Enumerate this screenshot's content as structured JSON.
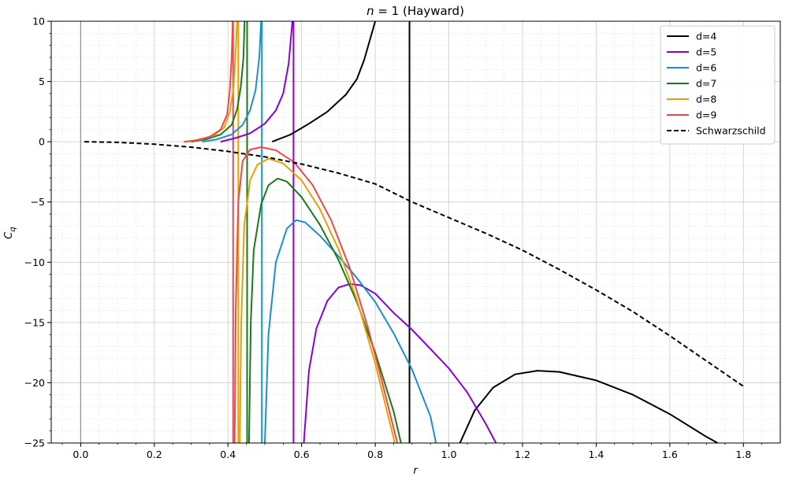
{
  "chart_data": {
    "type": "line",
    "title_var": "n",
    "title_rest": " = 1 (Hayward)",
    "xlabel": "r",
    "ylabel_main": "C",
    "ylabel_sub": "q",
    "xlim": [
      -0.08,
      1.9
    ],
    "ylim": [
      -25,
      10
    ],
    "xticks": [
      0.0,
      0.2,
      0.4,
      0.6,
      0.8,
      1.0,
      1.2,
      1.4,
      1.6,
      1.8
    ],
    "xtick_labels": [
      "0.0",
      "0.2",
      "0.4",
      "0.6",
      "0.8",
      "1.0",
      "1.2",
      "1.4",
      "1.6",
      "1.8"
    ],
    "yticks": [
      10,
      5,
      0,
      -5,
      -10,
      -15,
      -20,
      -25
    ],
    "ytick_labels": [
      "10",
      "5",
      "0",
      "−5",
      "−10",
      "−15",
      "−20",
      "−25"
    ],
    "grid": true,
    "legend_position": "top-right",
    "series": [
      {
        "name": "d=4",
        "color": "#000000",
        "dash": false,
        "points": [
          [
            0.52,
            0.0
          ],
          [
            0.57,
            0.6
          ],
          [
            0.62,
            1.5
          ],
          [
            0.67,
            2.5
          ],
          [
            0.72,
            3.9
          ],
          [
            0.75,
            5.2
          ],
          [
            0.77,
            6.8
          ],
          [
            0.785,
            8.4
          ],
          [
            0.8,
            10
          ]
        ],
        "points2": [
          [
            1.03,
            -25
          ],
          [
            1.07,
            -22.3
          ],
          [
            1.12,
            -20.4
          ],
          [
            1.18,
            -19.3
          ],
          [
            1.24,
            -19.0
          ],
          [
            1.3,
            -19.1
          ],
          [
            1.4,
            -19.8
          ],
          [
            1.5,
            -21.0
          ],
          [
            1.6,
            -22.6
          ],
          [
            1.7,
            -24.5
          ],
          [
            1.73,
            -25
          ]
        ],
        "vline": 0.893
      },
      {
        "name": "d=5",
        "color": "#8B00D6",
        "dash": false,
        "points": [
          [
            0.38,
            0.0
          ],
          [
            0.42,
            0.3
          ],
          [
            0.46,
            0.7
          ],
          [
            0.5,
            1.5
          ],
          [
            0.53,
            2.6
          ],
          [
            0.55,
            4.0
          ],
          [
            0.565,
            6.5
          ],
          [
            0.575,
            10
          ]
        ],
        "points2": [
          [
            0.606,
            -25
          ],
          [
            0.62,
            -19
          ],
          [
            0.64,
            -15.5
          ],
          [
            0.67,
            -13.2
          ],
          [
            0.7,
            -12.1
          ],
          [
            0.73,
            -11.8
          ],
          [
            0.76,
            -11.9
          ],
          [
            0.8,
            -12.6
          ],
          [
            0.85,
            -14.2
          ],
          [
            0.9,
            -15.6
          ],
          [
            0.95,
            -17.2
          ],
          [
            1.0,
            -18.8
          ],
          [
            1.05,
            -20.8
          ],
          [
            1.1,
            -23.4
          ],
          [
            1.128,
            -25
          ]
        ],
        "vline": 0.578
      },
      {
        "name": "d=6",
        "color": "#1B8FD0",
        "dash": false,
        "points": [
          [
            0.33,
            0.0
          ],
          [
            0.37,
            0.2
          ],
          [
            0.41,
            0.6
          ],
          [
            0.44,
            1.4
          ],
          [
            0.46,
            2.6
          ],
          [
            0.475,
            4.3
          ],
          [
            0.485,
            7
          ],
          [
            0.49,
            10
          ]
        ],
        "points2": [
          [
            0.5,
            -25
          ],
          [
            0.51,
            -16
          ],
          [
            0.53,
            -10
          ],
          [
            0.56,
            -7.2
          ],
          [
            0.585,
            -6.5
          ],
          [
            0.61,
            -6.7
          ],
          [
            0.65,
            -7.8
          ],
          [
            0.7,
            -9.5
          ],
          [
            0.75,
            -11.3
          ],
          [
            0.8,
            -13.3
          ],
          [
            0.85,
            -15.9
          ],
          [
            0.9,
            -18.9
          ],
          [
            0.95,
            -22.8
          ],
          [
            0.965,
            -25
          ]
        ],
        "vline": 0.492
      },
      {
        "name": "d=7",
        "color": "#1A7A1A",
        "dash": false,
        "points": [
          [
            0.3,
            0.0
          ],
          [
            0.34,
            0.2
          ],
          [
            0.38,
            0.6
          ],
          [
            0.41,
            1.4
          ],
          [
            0.425,
            2.7
          ],
          [
            0.435,
            4.6
          ],
          [
            0.442,
            7
          ],
          [
            0.445,
            10
          ]
        ],
        "points2": [
          [
            0.457,
            -25
          ],
          [
            0.462,
            -15
          ],
          [
            0.47,
            -9
          ],
          [
            0.49,
            -5.2
          ],
          [
            0.51,
            -3.6
          ],
          [
            0.535,
            -3.05
          ],
          [
            0.56,
            -3.3
          ],
          [
            0.6,
            -4.6
          ],
          [
            0.65,
            -6.9
          ],
          [
            0.7,
            -9.8
          ],
          [
            0.75,
            -13.3
          ],
          [
            0.8,
            -17.5
          ],
          [
            0.85,
            -22.4
          ],
          [
            0.87,
            -25
          ]
        ],
        "vline": 0.452
      },
      {
        "name": "d=8",
        "color": "#E8A000",
        "dash": false,
        "points": [
          [
            0.285,
            0.0
          ],
          [
            0.32,
            0.15
          ],
          [
            0.36,
            0.5
          ],
          [
            0.39,
            1.2
          ],
          [
            0.405,
            2.5
          ],
          [
            0.415,
            4.5
          ],
          [
            0.42,
            7
          ],
          [
            0.425,
            10
          ]
        ],
        "points2": [
          [
            0.432,
            -25
          ],
          [
            0.436,
            -15
          ],
          [
            0.444,
            -7
          ],
          [
            0.46,
            -3.2
          ],
          [
            0.48,
            -1.9
          ],
          [
            0.51,
            -1.4
          ],
          [
            0.55,
            -1.8
          ],
          [
            0.6,
            -3.2
          ],
          [
            0.65,
            -5.6
          ],
          [
            0.7,
            -8.9
          ],
          [
            0.75,
            -13.1
          ],
          [
            0.8,
            -18.4
          ],
          [
            0.85,
            -24.6
          ],
          [
            0.852,
            -25
          ]
        ],
        "vline": 0.428
      },
      {
        "name": "d=9",
        "color": "#F04848",
        "dash": false,
        "points": [
          [
            0.28,
            0.0
          ],
          [
            0.31,
            0.1
          ],
          [
            0.35,
            0.4
          ],
          [
            0.38,
            1.0
          ],
          [
            0.398,
            2.3
          ],
          [
            0.405,
            4.3
          ],
          [
            0.41,
            7
          ],
          [
            0.413,
            10
          ]
        ],
        "points2": [
          [
            0.418,
            -25
          ],
          [
            0.421,
            -14
          ],
          [
            0.428,
            -5
          ],
          [
            0.44,
            -1.6
          ],
          [
            0.46,
            -0.65
          ],
          [
            0.49,
            -0.45
          ],
          [
            0.53,
            -0.7
          ],
          [
            0.58,
            -1.7
          ],
          [
            0.63,
            -3.6
          ],
          [
            0.68,
            -6.5
          ],
          [
            0.73,
            -10.4
          ],
          [
            0.78,
            -15.4
          ],
          [
            0.82,
            -20.1
          ],
          [
            0.86,
            -25
          ]
        ],
        "vline": 0.414
      },
      {
        "name": "Schwarzschild",
        "color": "#000000",
        "dash": true,
        "points": [
          [
            0.01,
            0.0
          ],
          [
            0.1,
            -0.05
          ],
          [
            0.2,
            -0.2
          ],
          [
            0.3,
            -0.45
          ],
          [
            0.4,
            -0.8
          ],
          [
            0.5,
            -1.25
          ],
          [
            0.6,
            -1.85
          ],
          [
            0.7,
            -2.6
          ],
          [
            0.8,
            -3.5
          ],
          [
            0.9,
            -5.0
          ],
          [
            1.0,
            -6.3
          ],
          [
            1.1,
            -7.6
          ],
          [
            1.2,
            -9.0
          ],
          [
            1.3,
            -10.6
          ],
          [
            1.4,
            -12.3
          ],
          [
            1.5,
            -14.1
          ],
          [
            1.6,
            -16.1
          ],
          [
            1.7,
            -18.2
          ],
          [
            1.8,
            -20.3
          ]
        ],
        "points2": [],
        "vline": null
      }
    ]
  }
}
